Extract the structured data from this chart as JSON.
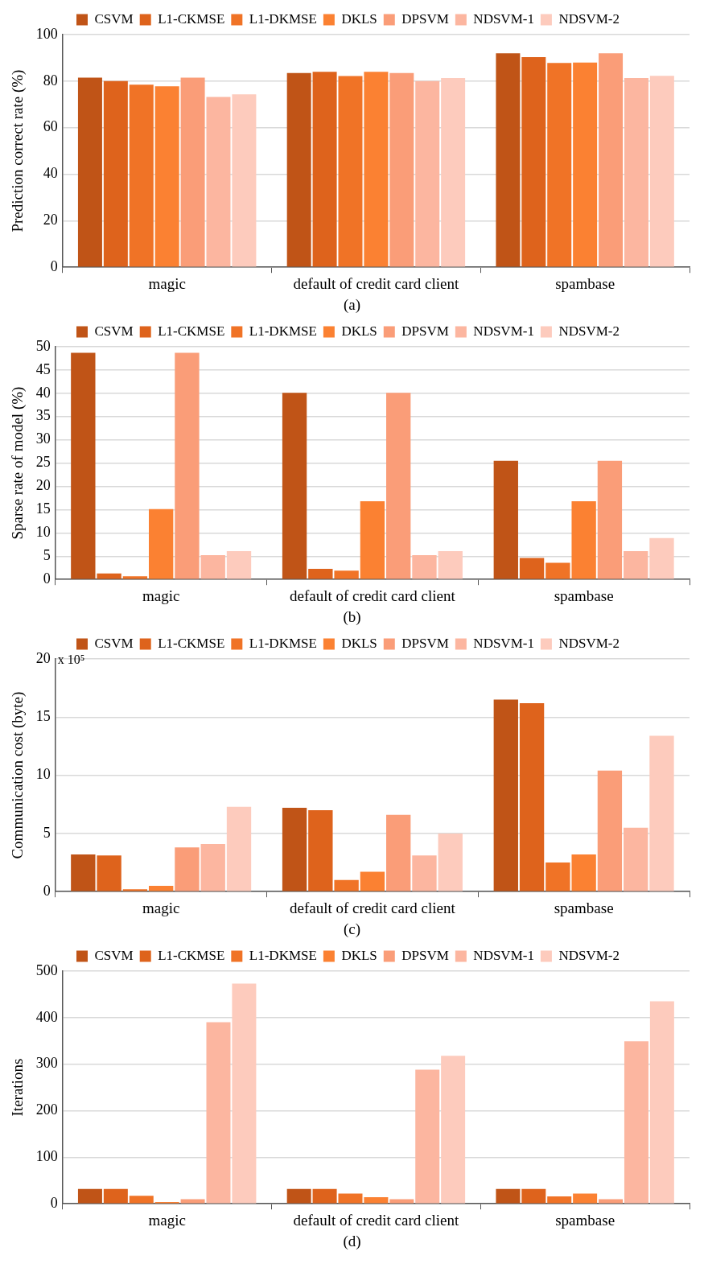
{
  "chart_data": [
    {
      "type": "bar",
      "ylabel": "Prediction correct rate (%)",
      "categories": [
        "magic",
        "default of credit card client",
        "spambase"
      ],
      "ylim": [
        0,
        100
      ],
      "yticks": [
        0,
        20,
        40,
        60,
        80,
        100
      ],
      "grid": "y",
      "legend": "top",
      "annotations": [
        "(a)"
      ],
      "series": [
        {
          "name": "CSVM",
          "color": "#c05417",
          "values": [
            81.5,
            83.5,
            92
          ]
        },
        {
          "name": "L1-CKMSE",
          "color": "#de631c",
          "values": [
            80,
            84,
            90.3
          ]
        },
        {
          "name": "L1-DKMSE",
          "color": "#f07326",
          "values": [
            78.5,
            82.2,
            87.8
          ]
        },
        {
          "name": "DKLS",
          "color": "#fb8132",
          "values": [
            77.8,
            84,
            88
          ]
        },
        {
          "name": "DPSVM",
          "color": "#fa9d78",
          "values": [
            81.5,
            83.5,
            92
          ]
        },
        {
          "name": "NDSVM-1",
          "color": "#fcb6a0",
          "values": [
            73.2,
            80,
            81.3
          ]
        },
        {
          "name": "NDSVM-2",
          "color": "#fdcbbd",
          "values": [
            74.3,
            81.3,
            82.3
          ]
        }
      ]
    },
    {
      "type": "bar",
      "ylabel": "Sparse rate of model (%)",
      "categories": [
        "magic",
        "default of credit card client",
        "spambase"
      ],
      "ylim": [
        0,
        50
      ],
      "yticks": [
        0,
        5,
        10,
        15,
        20,
        25,
        30,
        35,
        40,
        45,
        50
      ],
      "grid": "y",
      "legend": "top",
      "annotations": [
        "(b)"
      ],
      "series": [
        {
          "name": "CSVM",
          "color": "#c05417",
          "values": [
            48.7,
            40.1,
            25.5
          ]
        },
        {
          "name": "L1-CKMSE",
          "color": "#de631c",
          "values": [
            1.3,
            2.3,
            4.6
          ]
        },
        {
          "name": "L1-DKMSE",
          "color": "#f07326",
          "values": [
            0.7,
            1.9,
            3.6
          ]
        },
        {
          "name": "DKLS",
          "color": "#fb8132",
          "values": [
            15.1,
            16.8,
            16.8
          ]
        },
        {
          "name": "DPSVM",
          "color": "#fa9d78",
          "values": [
            48.7,
            40.1,
            25.5
          ]
        },
        {
          "name": "NDSVM-1",
          "color": "#fcb6a0",
          "values": [
            5.2,
            5.2,
            6.1
          ]
        },
        {
          "name": "NDSVM-2",
          "color": "#fdcbbd",
          "values": [
            6.1,
            6.1,
            8.9
          ]
        }
      ]
    },
    {
      "type": "bar",
      "ylabel": "Communication cost (byte)",
      "categories": [
        "magic",
        "default of credit card client",
        "spambase"
      ],
      "ylim": [
        0,
        20
      ],
      "yticks": [
        0,
        5,
        10,
        15,
        20
      ],
      "grid": "y",
      "legend": "top",
      "annotations": [
        "x 10⁵",
        "(c)"
      ],
      "series": [
        {
          "name": "CSVM",
          "color": "#c05417",
          "values": [
            3.2,
            7.2,
            16.5
          ]
        },
        {
          "name": "L1-CKMSE",
          "color": "#de631c",
          "values": [
            3.1,
            7.0,
            16.2
          ]
        },
        {
          "name": "L1-DKMSE",
          "color": "#f07326",
          "values": [
            0.2,
            1.0,
            2.5
          ]
        },
        {
          "name": "DKLS",
          "color": "#fb8132",
          "values": [
            0.5,
            1.7,
            3.2
          ]
        },
        {
          "name": "DPSVM",
          "color": "#fa9d78",
          "values": [
            3.8,
            6.6,
            10.4
          ]
        },
        {
          "name": "NDSVM-1",
          "color": "#fcb6a0",
          "values": [
            4.1,
            3.1,
            5.5
          ]
        },
        {
          "name": "NDSVM-2",
          "color": "#fdcbbd",
          "values": [
            7.3,
            5.0,
            13.4
          ]
        }
      ]
    },
    {
      "type": "bar",
      "ylabel": "Iterations",
      "categories": [
        "magic",
        "default of credit card client",
        "spambase"
      ],
      "ylim": [
        0,
        500
      ],
      "yticks": [
        0,
        100,
        200,
        300,
        400,
        500
      ],
      "grid": "y",
      "legend": "top",
      "annotations": [
        "(d)"
      ],
      "series": [
        {
          "name": "CSVM",
          "color": "#c05417",
          "values": [
            32,
            32,
            32
          ]
        },
        {
          "name": "L1-CKMSE",
          "color": "#de631c",
          "values": [
            32,
            32,
            32
          ]
        },
        {
          "name": "L1-DKMSE",
          "color": "#f07326",
          "values": [
            17,
            22,
            16
          ]
        },
        {
          "name": "DKLS",
          "color": "#fb8132",
          "values": [
            4,
            14,
            22
          ]
        },
        {
          "name": "DPSVM",
          "color": "#fa9d78",
          "values": [
            10,
            10,
            10
          ]
        },
        {
          "name": "NDSVM-1",
          "color": "#fcb6a0",
          "values": [
            390,
            288,
            349
          ]
        },
        {
          "name": "NDSVM-2",
          "color": "#fdcbbd",
          "values": [
            473,
            318,
            435
          ]
        }
      ]
    }
  ]
}
